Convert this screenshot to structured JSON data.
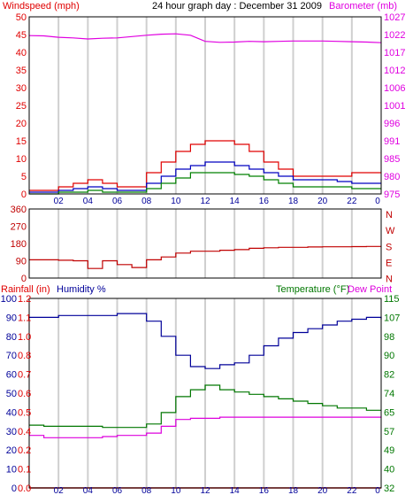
{
  "colors": {
    "background": "#ffffff",
    "panel_bg": "#ffffff",
    "grid": "#cfcfcf",
    "frame": "#000000",
    "wind_gust": "#e00000",
    "wind_avg": "#0000c0",
    "wind_low": "#008000",
    "barometer": "#e000e0",
    "direction": "#c00000",
    "rainfall": "#e00000",
    "humidity": "#000099",
    "temperature": "#007700",
    "dew_point": "#dd00dd",
    "label_black": "#000000"
  },
  "chart_data": [
    {
      "type": "line",
      "id": "wind-barometer",
      "title": "24 hour graph day : December 31 2009",
      "ylabel_left": "Windspeed (mph)",
      "ylabel_right": "Barometer (mb)",
      "ylim_left": [
        0,
        50
      ],
      "ylim_right": [
        975,
        1027
      ],
      "yticks_left": [
        "0",
        "5",
        "10",
        "15",
        "20",
        "25",
        "30",
        "35",
        "40",
        "45",
        "50"
      ],
      "yticks_right": [
        "975",
        "980",
        "985",
        "991",
        "996",
        "1001",
        "1006",
        "1012",
        "1017",
        "1022",
        "1027"
      ],
      "x_hours": [
        0,
        1,
        2,
        3,
        4,
        5,
        6,
        7,
        8,
        9,
        10,
        11,
        12,
        13,
        14,
        15,
        16,
        17,
        18,
        19,
        20,
        21,
        22,
        23,
        24
      ],
      "series": [
        {
          "key": "gust",
          "axis": "left",
          "values": [
            1,
            1,
            2,
            3,
            4,
            3,
            2,
            2,
            6,
            9,
            12,
            14,
            15,
            15,
            14,
            12,
            9,
            7,
            5,
            5,
            5,
            5,
            6,
            6,
            6
          ]
        },
        {
          "key": "avg",
          "axis": "left",
          "values": [
            0.5,
            0.5,
            1,
            1.5,
            2,
            1.5,
            1,
            1,
            3,
            5,
            7,
            8,
            9,
            9,
            8,
            7,
            6,
            5,
            4,
            4,
            4,
            3.5,
            3,
            3,
            3
          ]
        },
        {
          "key": "low",
          "axis": "left",
          "values": [
            0,
            0,
            0.5,
            0.5,
            1,
            0.5,
            0.5,
            0.5,
            1.5,
            3,
            4.5,
            6,
            6,
            6,
            5.5,
            5,
            4,
            3,
            2,
            2,
            2,
            2,
            1.5,
            1.5,
            1.5
          ]
        },
        {
          "key": "barometer",
          "axis": "right",
          "values": [
            1021.5,
            1021.4,
            1021.0,
            1020.8,
            1020.5,
            1020.7,
            1020.8,
            1021.2,
            1021.6,
            1021.9,
            1022.0,
            1021.6,
            1019.8,
            1019.5,
            1019.6,
            1019.8,
            1019.7,
            1019.8,
            1019.9,
            1019.9,
            1019.9,
            1019.8,
            1019.7,
            1019.6,
            1019.4
          ]
        }
      ]
    },
    {
      "type": "line",
      "id": "wind-direction",
      "ylim": [
        0,
        360
      ],
      "yticks_left": [
        "0",
        "90",
        "180",
        "270",
        "360"
      ],
      "direction_labels": [
        "N",
        "W",
        "S",
        "E",
        "N"
      ],
      "x_hours": [
        0,
        1,
        2,
        3,
        4,
        5,
        6,
        7,
        8,
        9,
        10,
        11,
        12,
        13,
        14,
        15,
        16,
        17,
        18,
        19,
        20,
        21,
        22,
        23,
        24
      ],
      "series": [
        {
          "key": "direction",
          "values": [
            95,
            95,
            93,
            90,
            50,
            90,
            70,
            55,
            95,
            110,
            130,
            140,
            140,
            145,
            148,
            155,
            158,
            160,
            160,
            162,
            163,
            163,
            164,
            165,
            165
          ]
        }
      ]
    },
    {
      "type": "line",
      "id": "rain-humidity-temp",
      "ylabel_rain": "Rainfall (in)",
      "ylabel_humidity": "Humidity %",
      "ylabel_temp": "Temperature (°F)",
      "ylabel_dew": "Dew Point",
      "ylim_humidity": [
        0,
        100
      ],
      "ylim_rain": [
        0.0,
        1.2
      ],
      "ylim_temp": [
        32,
        115
      ],
      "yticks_humidity": [
        "0",
        "10",
        "20",
        "30",
        "40",
        "50",
        "60",
        "70",
        "80",
        "90",
        "100"
      ],
      "yticks_rain": [
        "0.0",
        "0.1",
        "0.2",
        "0.4",
        "0.5",
        "0.6",
        "0.7",
        "0.8",
        "1.0",
        "1.1",
        "1.2"
      ],
      "yticks_temp": [
        "32",
        "40",
        "49",
        "57",
        "65",
        "74",
        "82",
        "90",
        "98",
        "107",
        "115"
      ],
      "x_tick_labels": [
        "02",
        "04",
        "06",
        "08",
        "10",
        "12",
        "14",
        "16",
        "18",
        "20",
        "22",
        "0"
      ],
      "x_hours": [
        0,
        1,
        2,
        3,
        4,
        5,
        6,
        7,
        8,
        9,
        10,
        11,
        12,
        13,
        14,
        15,
        16,
        17,
        18,
        19,
        20,
        21,
        22,
        23,
        24
      ],
      "series": [
        {
          "key": "humidity",
          "axis": "humidity",
          "values": [
            90,
            90,
            91,
            91,
            91,
            91,
            92,
            92,
            88,
            80,
            70,
            64,
            63,
            65,
            66,
            70,
            75,
            79,
            82,
            84,
            86,
            88,
            89,
            90,
            89
          ]
        },
        {
          "key": "temperature",
          "axis": "temp",
          "values": [
            59.5,
            59,
            59,
            59,
            59,
            58.5,
            58.5,
            58.5,
            60,
            65,
            72,
            75,
            77,
            75,
            74,
            73,
            72,
            71,
            70,
            69,
            68,
            67,
            67,
            66,
            66
          ]
        },
        {
          "key": "dew_point",
          "axis": "temp",
          "values": [
            55,
            54,
            54,
            54,
            54,
            54.5,
            55,
            55,
            56,
            59,
            62,
            62.5,
            62.5,
            63,
            63,
            63,
            63,
            63,
            63,
            63,
            63,
            63,
            63,
            63,
            63
          ]
        },
        {
          "key": "rainfall",
          "axis": "rain",
          "values": [
            0,
            0,
            0,
            0,
            0,
            0,
            0,
            0,
            0,
            0,
            0,
            0,
            0,
            0,
            0,
            0,
            0,
            0,
            0,
            0,
            0,
            0,
            0,
            0,
            0
          ]
        }
      ]
    }
  ]
}
